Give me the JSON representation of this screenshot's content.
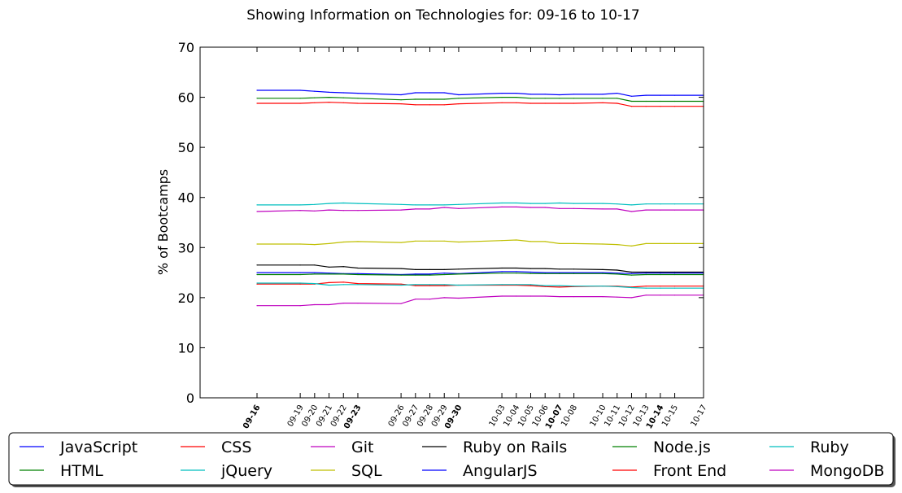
{
  "chart_data": {
    "type": "line",
    "title": "Showing Information on Technologies for: 09-16 to 10-17",
    "ylabel": "% of Bootcamps",
    "xlabel": "",
    "ylim": [
      0,
      70
    ],
    "yticks": [
      "0",
      "10",
      "20",
      "30",
      "40",
      "50",
      "60",
      "70"
    ],
    "grid": false,
    "legend_placement": "bottom",
    "x": [
      "09-16",
      "09-19",
      "09-20",
      "09-21",
      "09-22",
      "09-23",
      "09-26",
      "09-27",
      "09-28",
      "09-29",
      "09-30",
      "10-03",
      "10-04",
      "10-05",
      "10-06",
      "10-07",
      "10-08",
      "10-10",
      "10-11",
      "10-12",
      "10-13",
      "10-14",
      "10-15",
      "10-17"
    ],
    "x_days": [
      0,
      3,
      4,
      5,
      6,
      7,
      10,
      11,
      12,
      13,
      14,
      17,
      18,
      19,
      20,
      21,
      22,
      24,
      25,
      26,
      27,
      28,
      29,
      31
    ],
    "series": [
      {
        "name": "JavaScript",
        "color": "#0000ff",
        "values": [
          61.4,
          61.4,
          61.2,
          61.0,
          60.9,
          60.8,
          60.5,
          60.9,
          60.9,
          60.9,
          60.5,
          60.8,
          60.8,
          60.6,
          60.6,
          60.5,
          60.6,
          60.6,
          60.8,
          60.2,
          60.4,
          60.4,
          60.4,
          60.4
        ]
      },
      {
        "name": "HTML",
        "color": "#008000",
        "values": [
          59.8,
          59.8,
          59.9,
          60.0,
          59.9,
          59.8,
          59.5,
          59.6,
          59.6,
          59.6,
          59.8,
          60.0,
          60.0,
          59.8,
          59.8,
          59.8,
          59.8,
          59.8,
          59.8,
          59.2,
          59.2,
          59.2,
          59.2,
          59.2
        ]
      },
      {
        "name": "CSS",
        "color": "#ff0000",
        "values": [
          58.8,
          58.8,
          58.9,
          59.0,
          58.9,
          58.8,
          58.7,
          58.5,
          58.5,
          58.5,
          58.7,
          58.9,
          58.9,
          58.8,
          58.8,
          58.8,
          58.8,
          58.9,
          58.8,
          58.2,
          58.2,
          58.2,
          58.2,
          58.2
        ]
      },
      {
        "name": "jQuery",
        "color": "#00bfbf",
        "values": [
          38.5,
          38.5,
          38.6,
          38.8,
          38.9,
          38.8,
          38.6,
          38.5,
          38.5,
          38.5,
          38.6,
          38.9,
          38.9,
          38.8,
          38.8,
          38.9,
          38.8,
          38.8,
          38.7,
          38.5,
          38.7,
          38.7,
          38.7,
          38.7
        ]
      },
      {
        "name": "Git",
        "color": "#bf00bf",
        "values": [
          37.2,
          37.4,
          37.3,
          37.5,
          37.4,
          37.4,
          37.5,
          37.7,
          37.7,
          38.0,
          37.8,
          38.1,
          38.1,
          38.0,
          38.0,
          37.8,
          37.8,
          37.7,
          37.7,
          37.2,
          37.5,
          37.5,
          37.5,
          37.5
        ]
      },
      {
        "name": "SQL",
        "color": "#bfbf00",
        "values": [
          30.7,
          30.7,
          30.6,
          30.8,
          31.1,
          31.2,
          31.0,
          31.3,
          31.3,
          31.3,
          31.1,
          31.4,
          31.5,
          31.2,
          31.2,
          30.8,
          30.8,
          30.7,
          30.6,
          30.3,
          30.8,
          30.8,
          30.8,
          30.8
        ]
      },
      {
        "name": "Ruby on Rails",
        "color": "#000000",
        "values": [
          26.5,
          26.5,
          26.5,
          26.1,
          26.2,
          25.9,
          25.8,
          25.6,
          25.6,
          25.6,
          25.7,
          25.9,
          25.9,
          25.8,
          25.8,
          25.7,
          25.7,
          25.6,
          25.5,
          25.1,
          25.1,
          25.1,
          25.1,
          25.1
        ]
      },
      {
        "name": "AngularJS",
        "color": "#0000ff",
        "values": [
          25.0,
          25.0,
          25.0,
          24.9,
          24.8,
          24.8,
          24.6,
          24.7,
          24.7,
          24.9,
          24.8,
          25.2,
          25.2,
          25.1,
          25.0,
          25.0,
          25.0,
          25.0,
          24.9,
          24.8,
          24.9,
          24.9,
          24.9,
          24.9
        ]
      },
      {
        "name": "Node.js",
        "color": "#008000",
        "values": [
          24.6,
          24.6,
          24.7,
          24.7,
          24.7,
          24.6,
          24.5,
          24.5,
          24.5,
          24.6,
          24.7,
          24.9,
          24.9,
          24.8,
          24.8,
          24.8,
          24.8,
          24.8,
          24.7,
          24.5,
          24.6,
          24.6,
          24.6,
          24.6
        ]
      },
      {
        "name": "Front End",
        "color": "#ff0000",
        "values": [
          22.7,
          22.7,
          22.7,
          23.0,
          23.1,
          22.8,
          22.7,
          22.4,
          22.4,
          22.4,
          22.5,
          22.5,
          22.5,
          22.4,
          22.2,
          22.1,
          22.2,
          22.3,
          22.3,
          22.1,
          22.3,
          22.3,
          22.3,
          22.3
        ]
      },
      {
        "name": "Ruby",
        "color": "#00bfbf",
        "values": [
          22.9,
          22.9,
          22.8,
          22.5,
          22.6,
          22.6,
          22.5,
          22.6,
          22.6,
          22.6,
          22.5,
          22.6,
          22.6,
          22.6,
          22.4,
          22.4,
          22.3,
          22.3,
          22.2,
          22.0,
          21.9,
          21.9,
          21.9,
          21.9
        ]
      },
      {
        "name": "MongoDB",
        "color": "#bf00bf",
        "values": [
          18.4,
          18.4,
          18.6,
          18.6,
          18.9,
          18.9,
          18.8,
          19.7,
          19.7,
          20.0,
          19.9,
          20.3,
          20.3,
          20.3,
          20.3,
          20.2,
          20.2,
          20.2,
          20.1,
          20.0,
          20.5,
          20.5,
          20.5,
          20.5
        ]
      }
    ]
  }
}
